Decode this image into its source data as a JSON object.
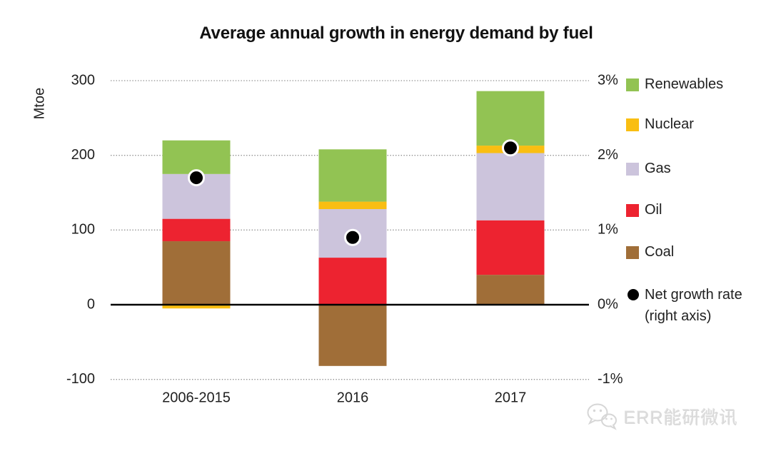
{
  "title": "Average annual growth in energy demand by fuel",
  "y_axis_title": "Mtoe",
  "watermark": {
    "text": "ERR能研微讯"
  },
  "colors": {
    "renewables": "#92C353",
    "nuclear": "#F9BE12",
    "gas": "#CCC4DC",
    "oil": "#ED2330",
    "coal": "#A06E38",
    "dot": "#000000",
    "grid": "#8f8f8f",
    "axis": "#000000",
    "text": "#1f1f1f",
    "watermark": "#d9d9d9"
  },
  "chart_data": {
    "type": "bar",
    "stacked": true,
    "title": "Average annual growth in energy demand by fuel",
    "categories": [
      "2006-2015",
      "2016",
      "2017"
    ],
    "series": [
      {
        "name": "Coal",
        "color_key": "coal",
        "values": [
          85,
          -82,
          40
        ]
      },
      {
        "name": "Oil",
        "color_key": "oil",
        "values": [
          30,
          63,
          73
        ]
      },
      {
        "name": "Gas",
        "color_key": "gas",
        "values": [
          60,
          65,
          90
        ]
      },
      {
        "name": "Nuclear",
        "color_key": "nuclear",
        "values": [
          -5,
          10,
          10
        ]
      },
      {
        "name": "Renewables",
        "color_key": "renewables",
        "values": [
          45,
          70,
          73
        ]
      }
    ],
    "dot_series": {
      "name": "Net growth rate (right axis)",
      "values_percent": [
        1.7,
        0.9,
        2.1
      ]
    },
    "left_axis": {
      "label": "Mtoe",
      "ticks": [
        300,
        200,
        100,
        0,
        -100
      ],
      "range": [
        -100,
        300
      ]
    },
    "right_axis": {
      "ticks": [
        "3%",
        "2%",
        "1%",
        "0%",
        "-1%"
      ],
      "range_percent": [
        -1,
        3
      ]
    },
    "grid": "dotted horizontal gridlines, solid zero axis",
    "legend_position": "right"
  },
  "legend": {
    "items": [
      {
        "label": "Renewables",
        "color_key": "renewables",
        "type": "square"
      },
      {
        "label": "Nuclear",
        "color_key": "nuclear",
        "type": "square"
      },
      {
        "label": "Gas",
        "color_key": "gas",
        "type": "square"
      },
      {
        "label": "Oil",
        "color_key": "oil",
        "type": "square"
      },
      {
        "label": "Coal",
        "color_key": "coal",
        "type": "square"
      },
      {
        "label": "Net growth rate",
        "label_line2": "(right axis)",
        "color_key": "dot",
        "type": "dot"
      }
    ]
  }
}
